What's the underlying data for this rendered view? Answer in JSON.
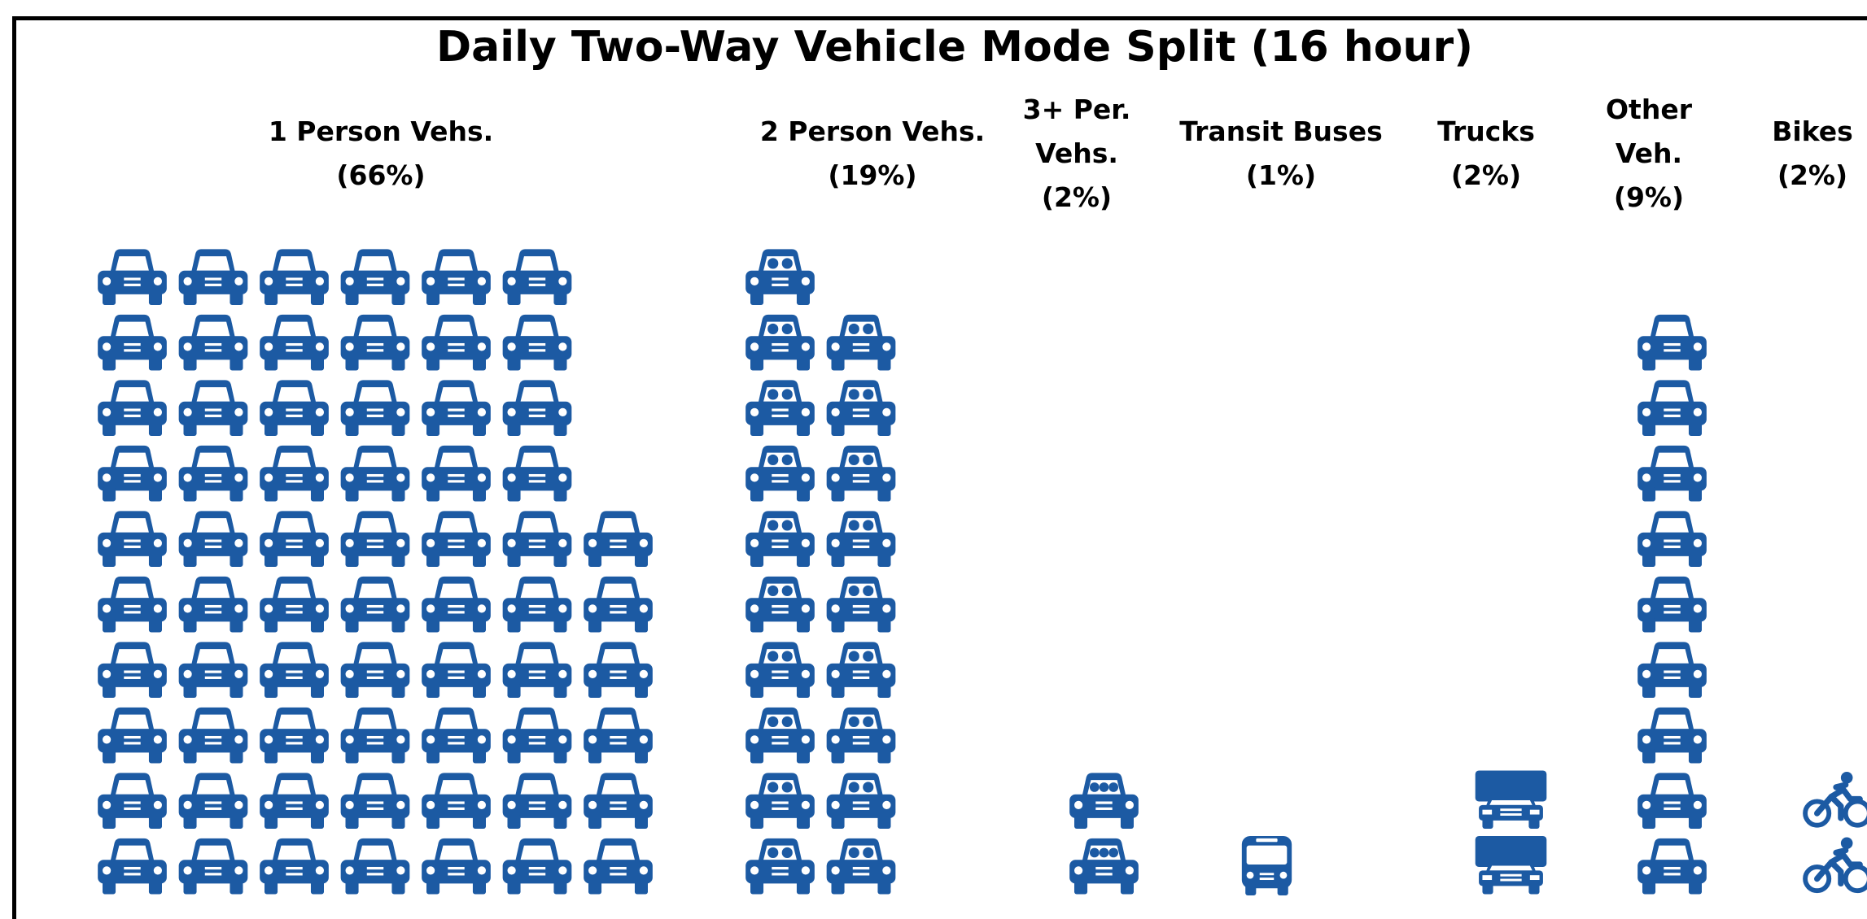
{
  "chart_data": {
    "type": "pictograph",
    "title": "Daily Two-Way Vehicle Mode Split (16 hour)",
    "categories": [
      "1 Person Vehs.",
      "2 Person Vehs.",
      "3+ Per. Vehs.",
      "Transit Buses",
      "Trucks",
      "Other Veh.",
      "Bikes"
    ],
    "values": [
      66,
      19,
      2,
      1,
      2,
      9,
      2
    ],
    "value_labels": [
      "(66%)",
      "(19%)",
      "(2%)",
      "(1%)",
      "(2%)",
      "(9%)",
      "(2%)"
    ],
    "icons": [
      "car",
      "car-2",
      "car-3",
      "bus",
      "truck",
      "car",
      "bike"
    ],
    "color": "#1c5aa3"
  }
}
